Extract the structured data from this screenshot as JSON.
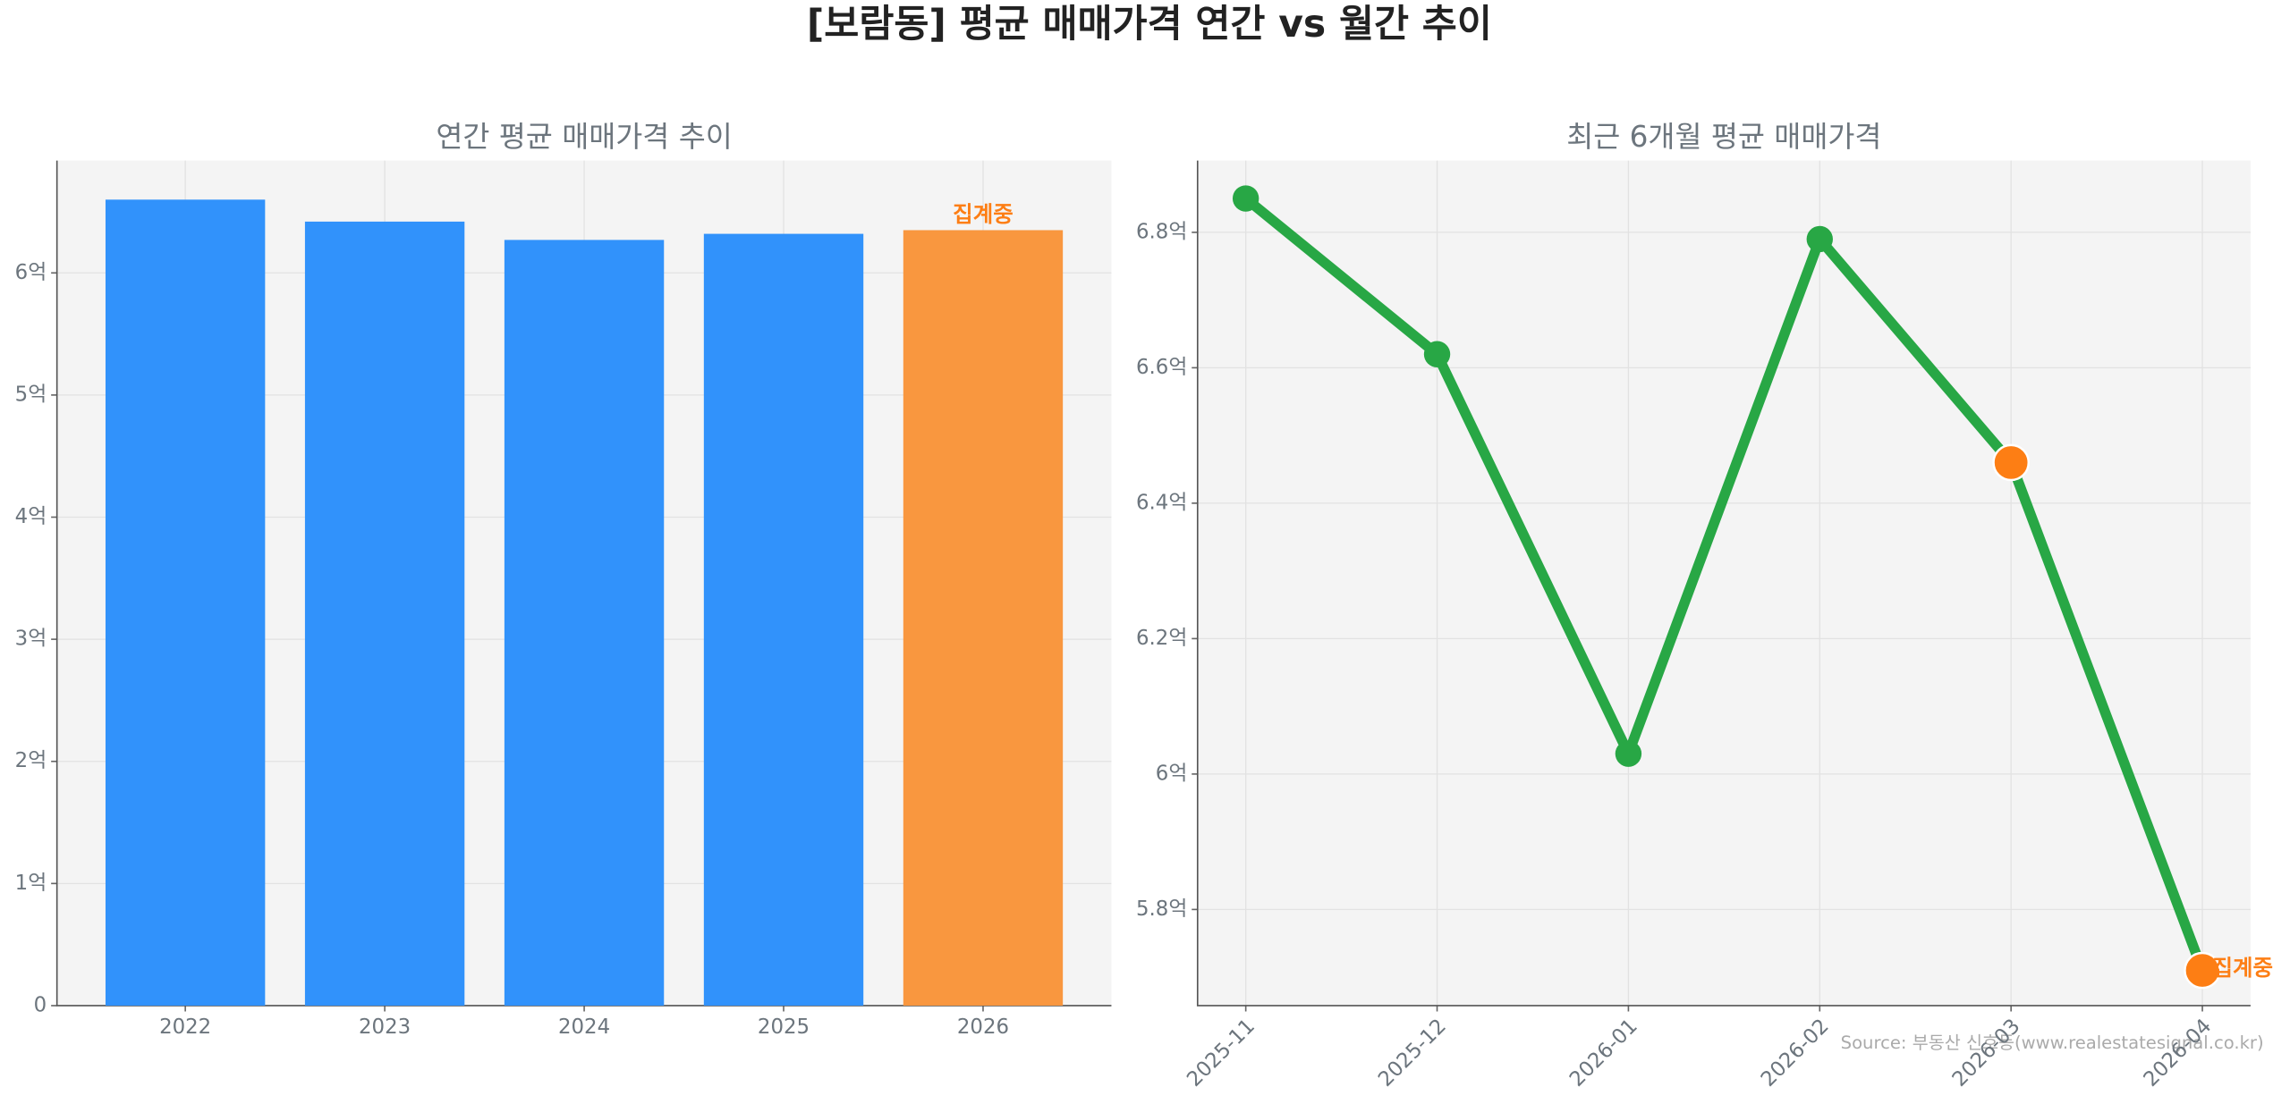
{
  "title": "[보람동] 평균 매매가격 연간 vs 월간 추이",
  "source": "Source: 부동산 신호등(www.realestatesignal.co.kr)",
  "chart_data": [
    {
      "type": "bar",
      "title": "연간 평균 매매가격 추이",
      "categories": [
        "2022",
        "2023",
        "2024",
        "2025",
        "2026"
      ],
      "values": [
        6.6,
        6.42,
        6.27,
        6.32,
        6.35
      ],
      "colors": [
        "#3192fb",
        "#3192fb",
        "#3192fb",
        "#3192fb",
        "#f9973f"
      ],
      "ylim": [
        0,
        6.92
      ],
      "yticks": [
        0,
        {
          "value": 1,
          "label": "1억"
        },
        {
          "value": 2,
          "label": "2억"
        },
        {
          "value": 3,
          "label": "3억"
        },
        {
          "value": 4,
          "label": "4억"
        },
        {
          "value": 5,
          "label": "5억"
        },
        {
          "value": 6,
          "label": "6억"
        }
      ],
      "grid": true,
      "annotations": [
        {
          "text": "집계중",
          "x": "2026",
          "color": "#fd7e14"
        }
      ]
    },
    {
      "type": "line",
      "title": "최근 6개월 평균 매매가격",
      "categories": [
        "2025-11",
        "2025-12",
        "2026-01",
        "2026-02",
        "2026-03",
        "2026-04"
      ],
      "values": [
        6.85,
        6.62,
        6.03,
        6.79,
        6.46,
        5.71
      ],
      "color": "#28a745",
      "marker_colors": [
        "#28a745",
        "#28a745",
        "#28a745",
        "#28a745",
        "#fd7e14",
        "#fd7e14"
      ],
      "ylim": [
        5.658,
        6.906
      ],
      "yticks": [
        {
          "value": 5.8,
          "label": "5.8억"
        },
        {
          "value": 6,
          "label": "6억"
        },
        {
          "value": 6.2,
          "label": "6.2억"
        },
        {
          "value": 6.4,
          "label": "6.4억"
        },
        {
          "value": 6.6,
          "label": "6.6억"
        },
        {
          "value": 6.8,
          "label": "6.8억"
        }
      ],
      "grid": true,
      "annotations": [
        {
          "text": "집계중",
          "x": "2026-04",
          "color": "#fd7e14"
        }
      ]
    }
  ]
}
